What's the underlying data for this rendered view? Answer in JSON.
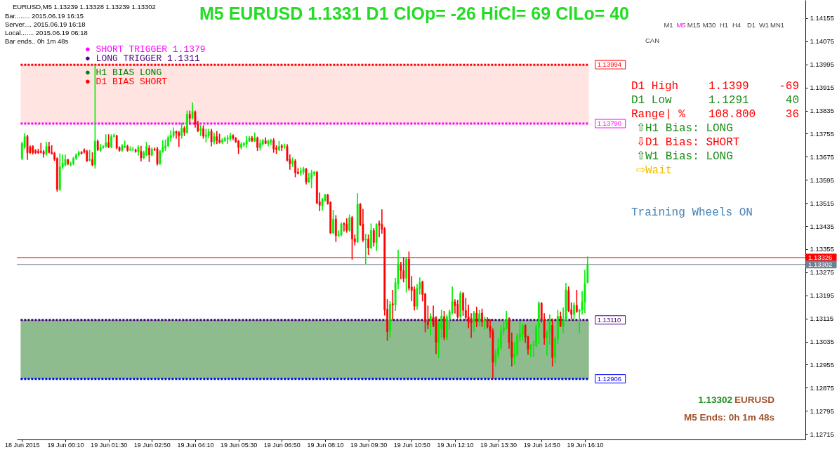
{
  "chart_data": {
    "type": "candlestick",
    "title": "M5 EURUSD 1.1331 D1 ClOp= -26 HiCl= 69 ClLo= 40",
    "x": [
      "2015-06-18T22:50",
      "2015-06-18T22:55",
      "2015-06-18T23:00",
      "2015-06-18T23:05",
      "2015-06-18T23:10",
      "2015-06-18T23:15",
      "2015-06-18T23:20",
      "2015-06-18T23:25",
      "2015-06-18T23:30",
      "2015-06-18T23:35",
      "2015-06-18T23:40",
      "2015-06-18T23:45",
      "2015-06-18T23:50",
      "2015-06-18T23:55",
      "2015-06-19T00:00",
      "2015-06-19T00:05",
      "2015-06-19T00:10",
      "2015-06-19T00:15",
      "2015-06-19T00:20",
      "2015-06-19T00:25",
      "2015-06-19T00:30",
      "2015-06-19T00:35",
      "2015-06-19T00:40",
      "2015-06-19T00:45",
      "2015-06-19T00:50",
      "2015-06-19T00:55",
      "2015-06-19T01:00",
      "2015-06-19T01:05",
      "2015-06-19T01:10",
      "2015-06-19T01:15",
      "2015-06-19T01:20",
      "2015-06-19T01:25",
      "2015-06-19T01:30",
      "2015-06-19T01:35",
      "2015-06-19T01:40",
      "2015-06-19T01:45",
      "2015-06-19T01:50",
      "2015-06-19T01:55",
      "2015-06-19T02:00",
      "2015-06-19T02:05",
      "2015-06-19T02:10",
      "2015-06-19T02:15",
      "2015-06-19T02:20",
      "2015-06-19T02:25",
      "2015-06-19T02:30",
      "2015-06-19T02:35",
      "2015-06-19T02:40",
      "2015-06-19T02:45",
      "2015-06-19T02:50",
      "2015-06-19T02:55",
      "2015-06-19T03:00",
      "2015-06-19T03:05",
      "2015-06-19T03:10",
      "2015-06-19T03:15",
      "2015-06-19T03:20",
      "2015-06-19T03:25",
      "2015-06-19T03:30",
      "2015-06-19T03:35",
      "2015-06-19T03:40",
      "2015-06-19T03:45",
      "2015-06-19T03:50",
      "2015-06-19T03:55",
      "2015-06-19T04:00",
      "2015-06-19T04:05",
      "2015-06-19T04:10",
      "2015-06-19T04:15",
      "2015-06-19T04:20",
      "2015-06-19T04:25",
      "2015-06-19T04:30",
      "2015-06-19T04:35",
      "2015-06-19T04:40",
      "2015-06-19T04:45",
      "2015-06-19T04:50",
      "2015-06-19T04:55",
      "2015-06-19T05:00",
      "2015-06-19T05:05",
      "2015-06-19T05:10",
      "2015-06-19T05:15",
      "2015-06-19T05:20",
      "2015-06-19T05:25",
      "2015-06-19T05:30",
      "2015-06-19T05:35",
      "2015-06-19T05:40",
      "2015-06-19T05:45",
      "2015-06-19T05:50",
      "2015-06-19T05:55",
      "2015-06-19T06:00",
      "2015-06-19T06:05",
      "2015-06-19T06:10",
      "2015-06-19T06:15",
      "2015-06-19T06:20",
      "2015-06-19T06:25",
      "2015-06-19T06:30",
      "2015-06-19T06:35",
      "2015-06-19T06:40",
      "2015-06-19T06:45",
      "2015-06-19T06:50",
      "2015-06-19T06:55",
      "2015-06-19T07:00",
      "2015-06-19T07:05",
      "2015-06-19T07:10",
      "2015-06-19T07:15",
      "2015-06-19T07:20",
      "2015-06-19T07:25",
      "2015-06-19T07:30",
      "2015-06-19T07:35",
      "2015-06-19T07:40",
      "2015-06-19T07:45",
      "2015-06-19T07:50",
      "2015-06-19T07:55",
      "2015-06-19T08:00",
      "2015-06-19T08:05",
      "2015-06-19T08:10",
      "2015-06-19T08:15",
      "2015-06-19T08:20",
      "2015-06-19T08:25",
      "2015-06-19T08:30",
      "2015-06-19T08:35",
      "2015-06-19T08:40",
      "2015-06-19T08:45",
      "2015-06-19T08:50",
      "2015-06-19T08:55",
      "2015-06-19T09:00",
      "2015-06-19T09:05",
      "2015-06-19T09:10",
      "2015-06-19T09:15",
      "2015-06-19T09:20",
      "2015-06-19T09:25",
      "2015-06-19T09:30",
      "2015-06-19T09:35",
      "2015-06-19T09:40",
      "2015-06-19T09:45",
      "2015-06-19T09:50",
      "2015-06-19T09:55",
      "2015-06-19T10:00",
      "2015-06-19T10:05",
      "2015-06-19T10:10",
      "2015-06-19T10:15",
      "2015-06-19T10:20",
      "2015-06-19T10:25",
      "2015-06-19T10:30",
      "2015-06-19T10:35",
      "2015-06-19T10:40",
      "2015-06-19T10:45",
      "2015-06-19T10:50",
      "2015-06-19T10:55",
      "2015-06-19T11:00",
      "2015-06-19T11:05",
      "2015-06-19T11:10",
      "2015-06-19T11:15",
      "2015-06-19T11:20",
      "2015-06-19T11:25",
      "2015-06-19T11:30",
      "2015-06-19T11:35",
      "2015-06-19T11:40",
      "2015-06-19T11:45",
      "2015-06-19T11:50",
      "2015-06-19T11:55",
      "2015-06-19T12:00",
      "2015-06-19T12:05",
      "2015-06-19T12:10",
      "2015-06-19T12:15",
      "2015-06-19T12:20",
      "2015-06-19T12:25",
      "2015-06-19T12:30",
      "2015-06-19T12:35",
      "2015-06-19T12:40",
      "2015-06-19T12:45",
      "2015-06-19T12:50",
      "2015-06-19T12:55",
      "2015-06-19T13:00",
      "2015-06-19T13:05",
      "2015-06-19T13:10",
      "2015-06-19T13:15",
      "2015-06-19T13:20",
      "2015-06-19T13:25",
      "2015-06-19T13:30",
      "2015-06-19T13:35",
      "2015-06-19T13:40",
      "2015-06-19T13:45",
      "2015-06-19T13:50",
      "2015-06-19T13:55",
      "2015-06-19T14:00",
      "2015-06-19T14:05",
      "2015-06-19T14:10",
      "2015-06-19T14:15",
      "2015-06-19T14:20",
      "2015-06-19T14:25",
      "2015-06-19T14:30",
      "2015-06-19T14:35",
      "2015-06-19T14:40",
      "2015-06-19T14:45",
      "2015-06-19T14:50",
      "2015-06-19T14:55",
      "2015-06-19T15:00",
      "2015-06-19T15:05",
      "2015-06-19T15:10",
      "2015-06-19T15:15",
      "2015-06-19T15:20",
      "2015-06-19T15:25",
      "2015-06-19T15:30",
      "2015-06-19T15:35",
      "2015-06-19T15:40",
      "2015-06-19T15:45",
      "2015-06-19T15:50",
      "2015-06-19T15:55",
      "2015-06-19T16:00",
      "2015-06-19T16:05",
      "2015-06-19T16:10",
      "2015-06-19T16:15"
    ],
    "ohlc": [
      [
        1.13669,
        1.13725,
        1.13666,
        1.13721
      ],
      [
        1.13709,
        1.13755,
        1.13705,
        1.13745
      ],
      [
        1.13745,
        1.13749,
        1.13666,
        1.13689
      ],
      [
        1.13709,
        1.13713,
        1.13687,
        1.13689
      ],
      [
        1.13711,
        1.13713,
        1.13685,
        1.13689
      ],
      [
        1.13697,
        1.13699,
        1.13687,
        1.13689
      ],
      [
        1.13694,
        1.13701,
        1.13687,
        1.13689
      ],
      [
        1.13694,
        1.13721,
        1.13689,
        1.1369
      ],
      [
        1.13693,
        1.13697,
        1.13674,
        1.13685
      ],
      [
        1.13685,
        1.13725,
        1.13681,
        1.13711
      ],
      [
        1.13711,
        1.13725,
        1.13689,
        1.1369
      ],
      [
        1.1369,
        1.13713,
        1.13685,
        1.13686
      ],
      [
        1.13687,
        1.1369,
        1.13663,
        1.13666
      ],
      [
        1.13669,
        1.13671,
        1.13556,
        1.13562
      ],
      [
        1.13562,
        1.13685,
        1.13559,
        1.1364
      ],
      [
        1.13639,
        1.13681,
        1.13636,
        1.13653
      ],
      [
        1.13647,
        1.13681,
        1.13644,
        1.13666
      ],
      [
        1.13665,
        1.13666,
        1.13648,
        1.13651
      ],
      [
        1.13647,
        1.13656,
        1.13644,
        1.13651
      ],
      [
        1.13651,
        1.13673,
        1.13648,
        1.13669
      ],
      [
        1.13669,
        1.13685,
        1.13666,
        1.13681
      ],
      [
        1.13681,
        1.13694,
        1.13678,
        1.1369
      ],
      [
        1.13691,
        1.13693,
        1.13685,
        1.13686
      ],
      [
        1.13699,
        1.13702,
        1.13689,
        1.13691
      ],
      [
        1.13694,
        1.13697,
        1.13659,
        1.13661
      ],
      [
        1.13663,
        1.13697,
        1.13661,
        1.13667
      ],
      [
        1.13665,
        1.13689,
        1.13644,
        1.13647
      ],
      [
        1.13647,
        1.1399,
        1.13636,
        1.13729
      ],
      [
        1.13729,
        1.13733,
        1.13697,
        1.13699
      ],
      [
        1.13697,
        1.13717,
        1.13695,
        1.13707
      ],
      [
        1.13707,
        1.13713,
        1.13705,
        1.13711
      ],
      [
        1.13711,
        1.13751,
        1.13709,
        1.13724
      ],
      [
        1.13724,
        1.13751,
        1.13707,
        1.13709
      ],
      [
        1.13709,
        1.13751,
        1.13707,
        1.13745
      ],
      [
        1.13745,
        1.13753,
        1.13744,
        1.13749
      ],
      [
        1.13748,
        1.13749,
        1.13703,
        1.13705
      ],
      [
        1.13707,
        1.13709,
        1.13695,
        1.13697
      ],
      [
        1.13697,
        1.13717,
        1.13695,
        1.13713
      ],
      [
        1.13709,
        1.13729,
        1.13707,
        1.13713
      ],
      [
        1.13711,
        1.13715,
        1.13695,
        1.13697
      ],
      [
        1.13699,
        1.13709,
        1.13697,
        1.13701
      ],
      [
        1.13699,
        1.13708,
        1.13697,
        1.137
      ],
      [
        1.13699,
        1.13701,
        1.13691,
        1.13693
      ],
      [
        1.13693,
        1.13713,
        1.13681,
        1.13709
      ],
      [
        1.13694,
        1.13711,
        1.13661,
        1.13671
      ],
      [
        1.13671,
        1.13694,
        1.13669,
        1.1369
      ],
      [
        1.13681,
        1.13725,
        1.13679,
        1.13711
      ],
      [
        1.13705,
        1.13713,
        1.13659,
        1.13681
      ],
      [
        1.13681,
        1.13705,
        1.13679,
        1.13702
      ],
      [
        1.13702,
        1.13705,
        1.13697,
        1.137
      ],
      [
        1.13703,
        1.13707,
        1.13647,
        1.13651
      ],
      [
        1.13651,
        1.13697,
        1.13649,
        1.13694
      ],
      [
        1.13693,
        1.13731,
        1.13691,
        1.13707
      ],
      [
        1.13705,
        1.13733,
        1.13697,
        1.13713
      ],
      [
        1.13713,
        1.13747,
        1.13711,
        1.13741
      ],
      [
        1.1374,
        1.13765,
        1.13729,
        1.13749
      ],
      [
        1.13748,
        1.13775,
        1.13743,
        1.13762
      ],
      [
        1.13762,
        1.13764,
        1.1374,
        1.13757
      ],
      [
        1.13759,
        1.13762,
        1.13711,
        1.13748
      ],
      [
        1.13748,
        1.13791,
        1.1374,
        1.13774
      ],
      [
        1.13774,
        1.1378,
        1.13749,
        1.1376
      ],
      [
        1.13759,
        1.13833,
        1.13757,
        1.13822
      ],
      [
        1.13822,
        1.13833,
        1.13788,
        1.13808
      ],
      [
        1.1381,
        1.13861,
        1.13806,
        1.13832
      ],
      [
        1.1383,
        1.13833,
        1.13778,
        1.13788
      ],
      [
        1.13788,
        1.13798,
        1.13762,
        1.13765
      ],
      [
        1.13765,
        1.13783,
        1.13749,
        1.13772
      ],
      [
        1.13772,
        1.13782,
        1.1374,
        1.13747
      ],
      [
        1.13745,
        1.1377,
        1.13727,
        1.13751
      ],
      [
        1.13748,
        1.1377,
        1.13741,
        1.13762
      ],
      [
        1.13764,
        1.1377,
        1.13713,
        1.13727
      ],
      [
        1.13727,
        1.13757,
        1.1372,
        1.13745
      ],
      [
        1.13745,
        1.13762,
        1.13721,
        1.13731
      ],
      [
        1.13733,
        1.13753,
        1.13723,
        1.13725
      ],
      [
        1.13725,
        1.13737,
        1.13721,
        1.13733
      ],
      [
        1.13731,
        1.13743,
        1.13729,
        1.13738
      ],
      [
        1.13736,
        1.13749,
        1.13721,
        1.13741
      ],
      [
        1.13737,
        1.13756,
        1.13733,
        1.13748
      ],
      [
        1.13748,
        1.13751,
        1.13735,
        1.13739
      ],
      [
        1.1374,
        1.13741,
        1.13725,
        1.13727
      ],
      [
        1.13729,
        1.13731,
        1.13687,
        1.13707
      ],
      [
        1.13707,
        1.13724,
        1.13702,
        1.13719
      ],
      [
        1.13715,
        1.13725,
        1.13711,
        1.13721
      ],
      [
        1.13719,
        1.13745,
        1.13709,
        1.13731
      ],
      [
        1.13729,
        1.13745,
        1.13728,
        1.1374
      ],
      [
        1.1374,
        1.13745,
        1.13728,
        1.13731
      ],
      [
        1.13729,
        1.13757,
        1.13728,
        1.1374
      ],
      [
        1.1374,
        1.13743,
        1.13697,
        1.13707
      ],
      [
        1.13707,
        1.13733,
        1.13699,
        1.13721
      ],
      [
        1.13719,
        1.13735,
        1.13715,
        1.13731
      ],
      [
        1.13731,
        1.1374,
        1.13721,
        1.13721
      ],
      [
        1.13721,
        1.13733,
        1.13713,
        1.13728
      ],
      [
        1.13727,
        1.13735,
        1.13717,
        1.13731
      ],
      [
        1.13731,
        1.13737,
        1.13691,
        1.13702
      ],
      [
        1.13706,
        1.13713,
        1.13687,
        1.13701
      ],
      [
        1.13699,
        1.13728,
        1.13697,
        1.13711
      ],
      [
        1.13713,
        1.13717,
        1.13697,
        1.13707
      ],
      [
        1.13711,
        1.13719,
        1.13705,
        1.13713
      ],
      [
        1.13711,
        1.13717,
        1.13661,
        1.13663
      ],
      [
        1.13666,
        1.13681,
        1.13632,
        1.13651
      ],
      [
        1.13651,
        1.1367,
        1.13642,
        1.13661
      ],
      [
        1.13661,
        1.13665,
        1.13606,
        1.1362
      ],
      [
        1.13622,
        1.13634,
        1.13616,
        1.13617
      ],
      [
        1.13619,
        1.13636,
        1.13612,
        1.13624
      ],
      [
        1.13622,
        1.13638,
        1.13616,
        1.13634
      ],
      [
        1.13632,
        1.13635,
        1.13581,
        1.13588
      ],
      [
        1.13588,
        1.13618,
        1.13586,
        1.13602
      ],
      [
        1.136,
        1.13628,
        1.13568,
        1.13619
      ],
      [
        1.13616,
        1.13624,
        1.1361,
        1.13622
      ],
      [
        1.13622,
        1.13624,
        1.13513,
        1.13515
      ],
      [
        1.13519,
        1.13549,
        1.13489,
        1.13507
      ],
      [
        1.13505,
        1.13531,
        1.13491,
        1.13527
      ],
      [
        1.13523,
        1.13545,
        1.13522,
        1.13543
      ],
      [
        1.13542,
        1.13545,
        1.13511,
        1.13513
      ],
      [
        1.13517,
        1.13519,
        1.1341,
        1.13411
      ],
      [
        1.13411,
        1.13489,
        1.1341,
        1.13459
      ],
      [
        1.13459,
        1.13471,
        1.13382,
        1.13402
      ],
      [
        1.13402,
        1.13418,
        1.134,
        1.13406
      ],
      [
        1.13404,
        1.13446,
        1.13402,
        1.13442
      ],
      [
        1.13444,
        1.13446,
        1.13418,
        1.13441
      ],
      [
        1.13442,
        1.1346,
        1.13414,
        1.1342
      ],
      [
        1.1342,
        1.13473,
        1.13418,
        1.13464
      ],
      [
        1.13465,
        1.13468,
        1.13321,
        1.1339
      ],
      [
        1.13391,
        1.13404,
        1.1337,
        1.1338
      ],
      [
        1.1338,
        1.13547,
        1.13379,
        1.13511
      ],
      [
        1.13511,
        1.13513,
        1.13437,
        1.1344
      ],
      [
        1.13442,
        1.13493,
        1.13382,
        1.13386
      ],
      [
        1.13387,
        1.13406,
        1.13305,
        1.13391
      ],
      [
        1.1339,
        1.13404,
        1.13337,
        1.1336
      ],
      [
        1.1336,
        1.13442,
        1.13358,
        1.1342
      ],
      [
        1.1342,
        1.13426,
        1.13366,
        1.13378
      ],
      [
        1.13378,
        1.13442,
        1.13351,
        1.13441
      ],
      [
        1.13444,
        1.13452,
        1.13398,
        1.13438
      ],
      [
        1.13441,
        1.13491,
        1.13411,
        1.13424
      ],
      [
        1.13426,
        1.1343,
        1.13127,
        1.13145
      ],
      [
        1.13147,
        1.1318,
        1.1304,
        1.13069
      ],
      [
        1.13072,
        1.13173,
        1.1305,
        1.13164
      ],
      [
        1.13166,
        1.13212,
        1.13111,
        1.13162
      ],
      [
        1.13162,
        1.13253,
        1.13143,
        1.13239
      ],
      [
        1.13236,
        1.13351,
        1.13218,
        1.13301
      ],
      [
        1.13299,
        1.13309,
        1.13253,
        1.13281
      ],
      [
        1.13281,
        1.13325,
        1.13242,
        1.13254
      ],
      [
        1.13254,
        1.13325,
        1.13207,
        1.13321
      ],
      [
        1.13321,
        1.13345,
        1.13214,
        1.1322
      ],
      [
        1.13224,
        1.1326,
        1.13177,
        1.13212
      ],
      [
        1.13215,
        1.13224,
        1.13145,
        1.13157
      ],
      [
        1.13157,
        1.13232,
        1.13147,
        1.1322
      ],
      [
        1.13218,
        1.13255,
        1.132,
        1.1324
      ],
      [
        1.13242,
        1.13244,
        1.13176,
        1.13198
      ],
      [
        1.132,
        1.13202,
        1.13069,
        1.13103
      ],
      [
        1.13105,
        1.13158,
        1.1308,
        1.13093
      ],
      [
        1.13103,
        1.13131,
        1.13059,
        1.13123
      ],
      [
        1.13119,
        1.13158,
        1.13087,
        1.13091
      ],
      [
        1.13119,
        1.13121,
        1.12994,
        1.13033
      ],
      [
        1.13033,
        1.13105,
        1.1298,
        1.13103
      ],
      [
        1.13079,
        1.13143,
        1.13049,
        1.13123
      ],
      [
        1.13122,
        1.13139,
        1.13042,
        1.1305
      ],
      [
        1.1305,
        1.13127,
        1.13041,
        1.13121
      ],
      [
        1.13111,
        1.13144,
        1.13079,
        1.13139
      ],
      [
        1.13134,
        1.13224,
        1.13131,
        1.13174
      ],
      [
        1.13173,
        1.1318,
        1.13134,
        1.13159
      ],
      [
        1.13164,
        1.13178,
        1.13117,
        1.13121
      ],
      [
        1.13121,
        1.13207,
        1.13117,
        1.13202
      ],
      [
        1.13202,
        1.13204,
        1.13126,
        1.13143
      ],
      [
        1.13143,
        1.13184,
        1.13113,
        1.13118
      ],
      [
        1.13121,
        1.13161,
        1.13083,
        1.13103
      ],
      [
        1.13115,
        1.13131,
        1.1305,
        1.13099
      ],
      [
        1.13103,
        1.13139,
        1.13071,
        1.13134
      ],
      [
        1.13134,
        1.13154,
        1.13087,
        1.13103
      ],
      [
        1.13103,
        1.13143,
        1.13091,
        1.13131
      ],
      [
        1.13134,
        1.13147,
        1.13088,
        1.13103
      ],
      [
        1.13105,
        1.13119,
        1.13079,
        1.1311
      ],
      [
        1.13111,
        1.13117,
        1.13083,
        1.13085
      ],
      [
        1.13088,
        1.13111,
        1.1305,
        1.13071
      ],
      [
        1.13071,
        1.13079,
        1.12909,
        1.12963
      ],
      [
        1.12963,
        1.13006,
        1.12951,
        1.12992
      ],
      [
        1.1299,
        1.13045,
        1.12982,
        1.13014
      ],
      [
        1.13012,
        1.13091,
        1.1301,
        1.13072
      ],
      [
        1.13072,
        1.13111,
        1.13059,
        1.13083
      ],
      [
        1.1308,
        1.13139,
        1.13079,
        1.13111
      ],
      [
        1.13115,
        1.13117,
        1.13012,
        1.13033
      ],
      [
        1.13034,
        1.13064,
        1.12951,
        1.1298
      ],
      [
        1.1298,
        1.13032,
        1.12957,
        1.12992
      ],
      [
        1.1299,
        1.13064,
        1.12986,
        1.13056
      ],
      [
        1.1305,
        1.13103,
        1.13037,
        1.13062
      ],
      [
        1.13061,
        1.13095,
        1.1304,
        1.13091
      ],
      [
        1.13091,
        1.13093,
        1.13032,
        1.1305
      ],
      [
        1.13052,
        1.13053,
        1.12992,
        1.13008
      ],
      [
        1.1301,
        1.13024,
        1.12984,
        1.13022
      ],
      [
        1.13022,
        1.13034,
        1.12984,
        1.13024
      ],
      [
        1.13022,
        1.13093,
        1.13018,
        1.13084
      ],
      [
        1.13084,
        1.13172,
        1.13029,
        1.13168
      ],
      [
        1.13168,
        1.1317,
        1.13103,
        1.13111
      ],
      [
        1.13113,
        1.13131,
        1.13026,
        1.13047
      ],
      [
        1.13047,
        1.13073,
        1.12988,
        1.13067
      ],
      [
        1.13067,
        1.13127,
        1.13026,
        1.1311
      ],
      [
        1.13091,
        1.13113,
        1.12951,
        1.1298
      ],
      [
        1.1298,
        1.1305,
        1.12962,
        1.13045
      ],
      [
        1.13045,
        1.13143,
        1.13029,
        1.13123
      ],
      [
        1.13123,
        1.13137,
        1.13087,
        1.13088
      ],
      [
        1.13088,
        1.13151,
        1.13067,
        1.1311
      ],
      [
        1.1311,
        1.13236,
        1.13107,
        1.13215
      ],
      [
        1.13212,
        1.13224,
        1.13139,
        1.13142
      ],
      [
        1.13145,
        1.13169,
        1.13115,
        1.13129
      ],
      [
        1.13129,
        1.13169,
        1.13115,
        1.13161
      ],
      [
        1.13161,
        1.13212,
        1.13137,
        1.13139
      ],
      [
        1.13139,
        1.13146,
        1.13067,
        1.13145
      ],
      [
        1.13145,
        1.13208,
        1.13131,
        1.13173
      ],
      [
        1.13173,
        1.13282,
        1.13135,
        1.13236
      ],
      [
        1.13239,
        1.13328,
        1.13239,
        1.13302
      ]
    ],
    "colors": [
      "#00ee00",
      "#00ee00",
      "#ff0000",
      "#ff0000",
      "#ff0000",
      "#ff0000",
      "#ff0000",
      "#ff0000",
      "#ff0000",
      "#00ee00",
      "#ff0000",
      "#ff0000",
      "#ff0000",
      "#ff0000",
      "#00ee00",
      "#00ee00",
      "#00ee00",
      "#ff0000",
      "#00ee00",
      "#00ee00",
      "#00ee00",
      "#00ee00",
      "#ff0000",
      "#ff0000",
      "#ff0000",
      "#00ee00",
      "#ff0000",
      "#00ee00",
      "#ff0000",
      "#00ee00",
      "#00ee00",
      "#00ee00",
      "#ff0000",
      "#00ee00",
      "#00ee00",
      "#ff0000",
      "#ff0000",
      "#00ee00",
      "#00ee00",
      "#ff0000",
      "#00ee00",
      "#00ee00",
      "#ff0000",
      "#00ee00",
      "#ff0000",
      "#00ee00",
      "#00ee00",
      "#ff0000",
      "#00ee00",
      "#ff0000",
      "#ff0000",
      "#00ee00",
      "#00ee00",
      "#00ee00",
      "#00ee00",
      "#00ee00",
      "#00ee00",
      "#ff0000",
      "#ff0000",
      "#00ee00",
      "#ff0000",
      "#00ee00",
      "#ff0000",
      "#00ee00",
      "#ff0000",
      "#ff0000",
      "#00ee00",
      "#ff0000",
      "#00ee00",
      "#00ee00",
      "#ff0000",
      "#00ee00",
      "#ff0000",
      "#ff0000",
      "#00ee00",
      "#00ee00",
      "#00ee00",
      "#00ee00",
      "#ff0000",
      "#ff0000",
      "#ff0000",
      "#00ee00",
      "#00ee00",
      "#00ee00",
      "#00ee00",
      "#ff0000",
      "#00ee00",
      "#ff0000",
      "#00ee00",
      "#00ee00",
      "#ff0000",
      "#00ee00",
      "#00ee00",
      "#ff0000",
      "#ff0000",
      "#00ee00",
      "#ff0000",
      "#00ee00",
      "#ff0000",
      "#ff0000",
      "#00ee00",
      "#ff0000",
      "#ff0000",
      "#00ee00",
      "#00ee00",
      "#ff0000",
      "#00ee00",
      "#00ee00",
      "#00ee00",
      "#ff0000",
      "#ff0000",
      "#00ee00",
      "#00ee00",
      "#ff0000",
      "#ff0000",
      "#00ee00",
      "#ff0000",
      "#00ee00",
      "#00ee00",
      "#ff0000",
      "#ff0000",
      "#00ee00",
      "#ff0000",
      "#ff0000",
      "#00ee00",
      "#ff0000",
      "#ff0000",
      "#00ee00",
      "#ff0000",
      "#00ee00",
      "#ff0000",
      "#00ee00",
      "#ff0000",
      "#ff0000",
      "#ff0000",
      "#ff0000",
      "#00ee00",
      "#ff0000",
      "#00ee00",
      "#00ee00",
      "#ff0000",
      "#ff0000",
      "#00ee00",
      "#ff0000",
      "#ff0000",
      "#ff0000",
      "#00ee00",
      "#00ee00",
      "#ff0000",
      "#ff0000",
      "#ff0000",
      "#00ee00",
      "#ff0000",
      "#ff0000",
      "#00ee00",
      "#00ee00",
      "#ff0000",
      "#00ee00",
      "#00ee00",
      "#00ee00",
      "#ff0000",
      "#ff0000",
      "#00ee00",
      "#ff0000",
      "#ff0000",
      "#ff0000",
      "#ff0000",
      "#00ee00",
      "#ff0000",
      "#00ee00",
      "#ff0000",
      "#00ee00",
      "#ff0000",
      "#ff0000",
      "#ff0000",
      "#00ee00",
      "#00ee00",
      "#00ee00",
      "#00ee00",
      "#00ee00",
      "#ff0000",
      "#ff0000",
      "#00ee00",
      "#00ee00",
      "#00ee00",
      "#00ee00",
      "#ff0000",
      "#ff0000",
      "#00ee00",
      "#00ee00",
      "#00ee00",
      "#00ee00",
      "#ff0000",
      "#ff0000",
      "#00ee00",
      "#00ee00",
      "#ff0000",
      "#00ee00",
      "#00ee00",
      "#ff0000",
      "#00ee00",
      "#00ee00",
      "#ff0000",
      "#ff0000",
      "#00ee00",
      "#ff0000",
      "#00ee00",
      "#00ee00",
      "#00ee00",
      "#00ee00"
    ],
    "xlim": [
      "2015-06-18T22:47",
      "2015-06-19T22:51"
    ],
    "xticks": [
      {
        "value": "2015-06-18T22:50",
        "label": "18 Jun 2015"
      },
      {
        "value": "2015-06-19T00:10",
        "label": "19 Jun 00:10"
      },
      {
        "value": "2015-06-19T01:30",
        "label": "19 Jun 01:30"
      },
      {
        "value": "2015-06-19T02:50",
        "label": "19 Jun 02:50"
      },
      {
        "value": "2015-06-19T04:10",
        "label": "19 Jun 04:10"
      },
      {
        "value": "2015-06-19T05:30",
        "label": "19 Jun 05:30"
      },
      {
        "value": "2015-06-19T06:50",
        "label": "19 Jun 06:50"
      },
      {
        "value": "2015-06-19T08:10",
        "label": "19 Jun 08:10"
      },
      {
        "value": "2015-06-19T09:30",
        "label": "19 Jun 09:30"
      },
      {
        "value": "2015-06-19T10:50",
        "label": "19 Jun 10:50"
      },
      {
        "value": "2015-06-19T12:10",
        "label": "19 Jun 12:10"
      },
      {
        "value": "2015-06-19T13:30",
        "label": "19 Jun 13:30"
      },
      {
        "value": "2015-06-19T14:50",
        "label": "19 Jun 14:50"
      },
      {
        "value": "2015-06-19T16:10",
        "label": "19 Jun 16:10"
      }
    ],
    "ylim": [
      1.12696,
      1.14218
    ],
    "yticks": [
      1.14155,
      1.14075,
      1.13995,
      1.13915,
      1.13835,
      1.13755,
      1.13675,
      1.13595,
      1.13515,
      1.13435,
      1.13355,
      1.13275,
      1.13195,
      1.13115,
      1.13035,
      1.12955,
      1.12875,
      1.12795,
      1.12715
    ],
    "ref_lines": [
      {
        "axis": "y",
        "value": 1.13994,
        "label": "1.13994",
        "color": "#ff0000",
        "line_style": "dotted"
      },
      {
        "axis": "y",
        "value": 1.1379,
        "label": "1.13790",
        "color": "#ff00ff",
        "line_style": "dotted"
      },
      {
        "axis": "y",
        "value": 1.1311,
        "label": "1.13110",
        "color": "#4b0082",
        "line_style": "dotted"
      },
      {
        "axis": "y",
        "value": 1.12906,
        "label": "1.12906",
        "color": "#0000ff",
        "line_style": "dotted"
      },
      {
        "axis": "y",
        "value": 1.13326,
        "label": "1.13326",
        "color": "#ff0000",
        "line_style": "solid"
      },
      {
        "axis": "y",
        "value": 1.13302,
        "label": "1.13302",
        "color": "#708090",
        "line_style": "solid"
      }
    ],
    "bands": [
      {
        "axis": "y",
        "from": 1.1379,
        "to": 1.13994,
        "color": "#ffe4e1"
      },
      {
        "axis": "y",
        "from": 1.12906,
        "to": 1.1311,
        "color": "#8fbc8f"
      }
    ],
    "annotations": [
      "EURUSD,M5 1.13239 1.13328 1.13239 1.13302",
      "Bar........ 2015.06.19 16:15",
      "Server.... 2015.06.19 16:18",
      "Local....... 2015.06.19 06:18",
      "Bar ends.. 0h 1m 48s",
      "● SHORT TRIGGER 1.1379",
      "● LONG TRIGGER 1.1311",
      "● H1 BIAS LONG",
      "● D1 BIAS SHORT",
      "M1",
      "M5",
      "M15",
      "M30",
      "H1",
      "H4",
      "D1",
      "W1",
      "MN1",
      "CAN",
      "D1 High",
      "1.1399",
      "-69",
      "D1 Low",
      "1.1291",
      "40",
      "Range| %",
      "108.800",
      "36",
      "⇧H1 Bias: LONG",
      "⇩D1 Bias: SHORT",
      "⇧W1 Bias: LONG",
      "⇨Wait",
      "Training Wheels ON",
      "1.13302",
      "EURUSD",
      "M5 Ends: 0h 1m 48s"
    ]
  }
}
